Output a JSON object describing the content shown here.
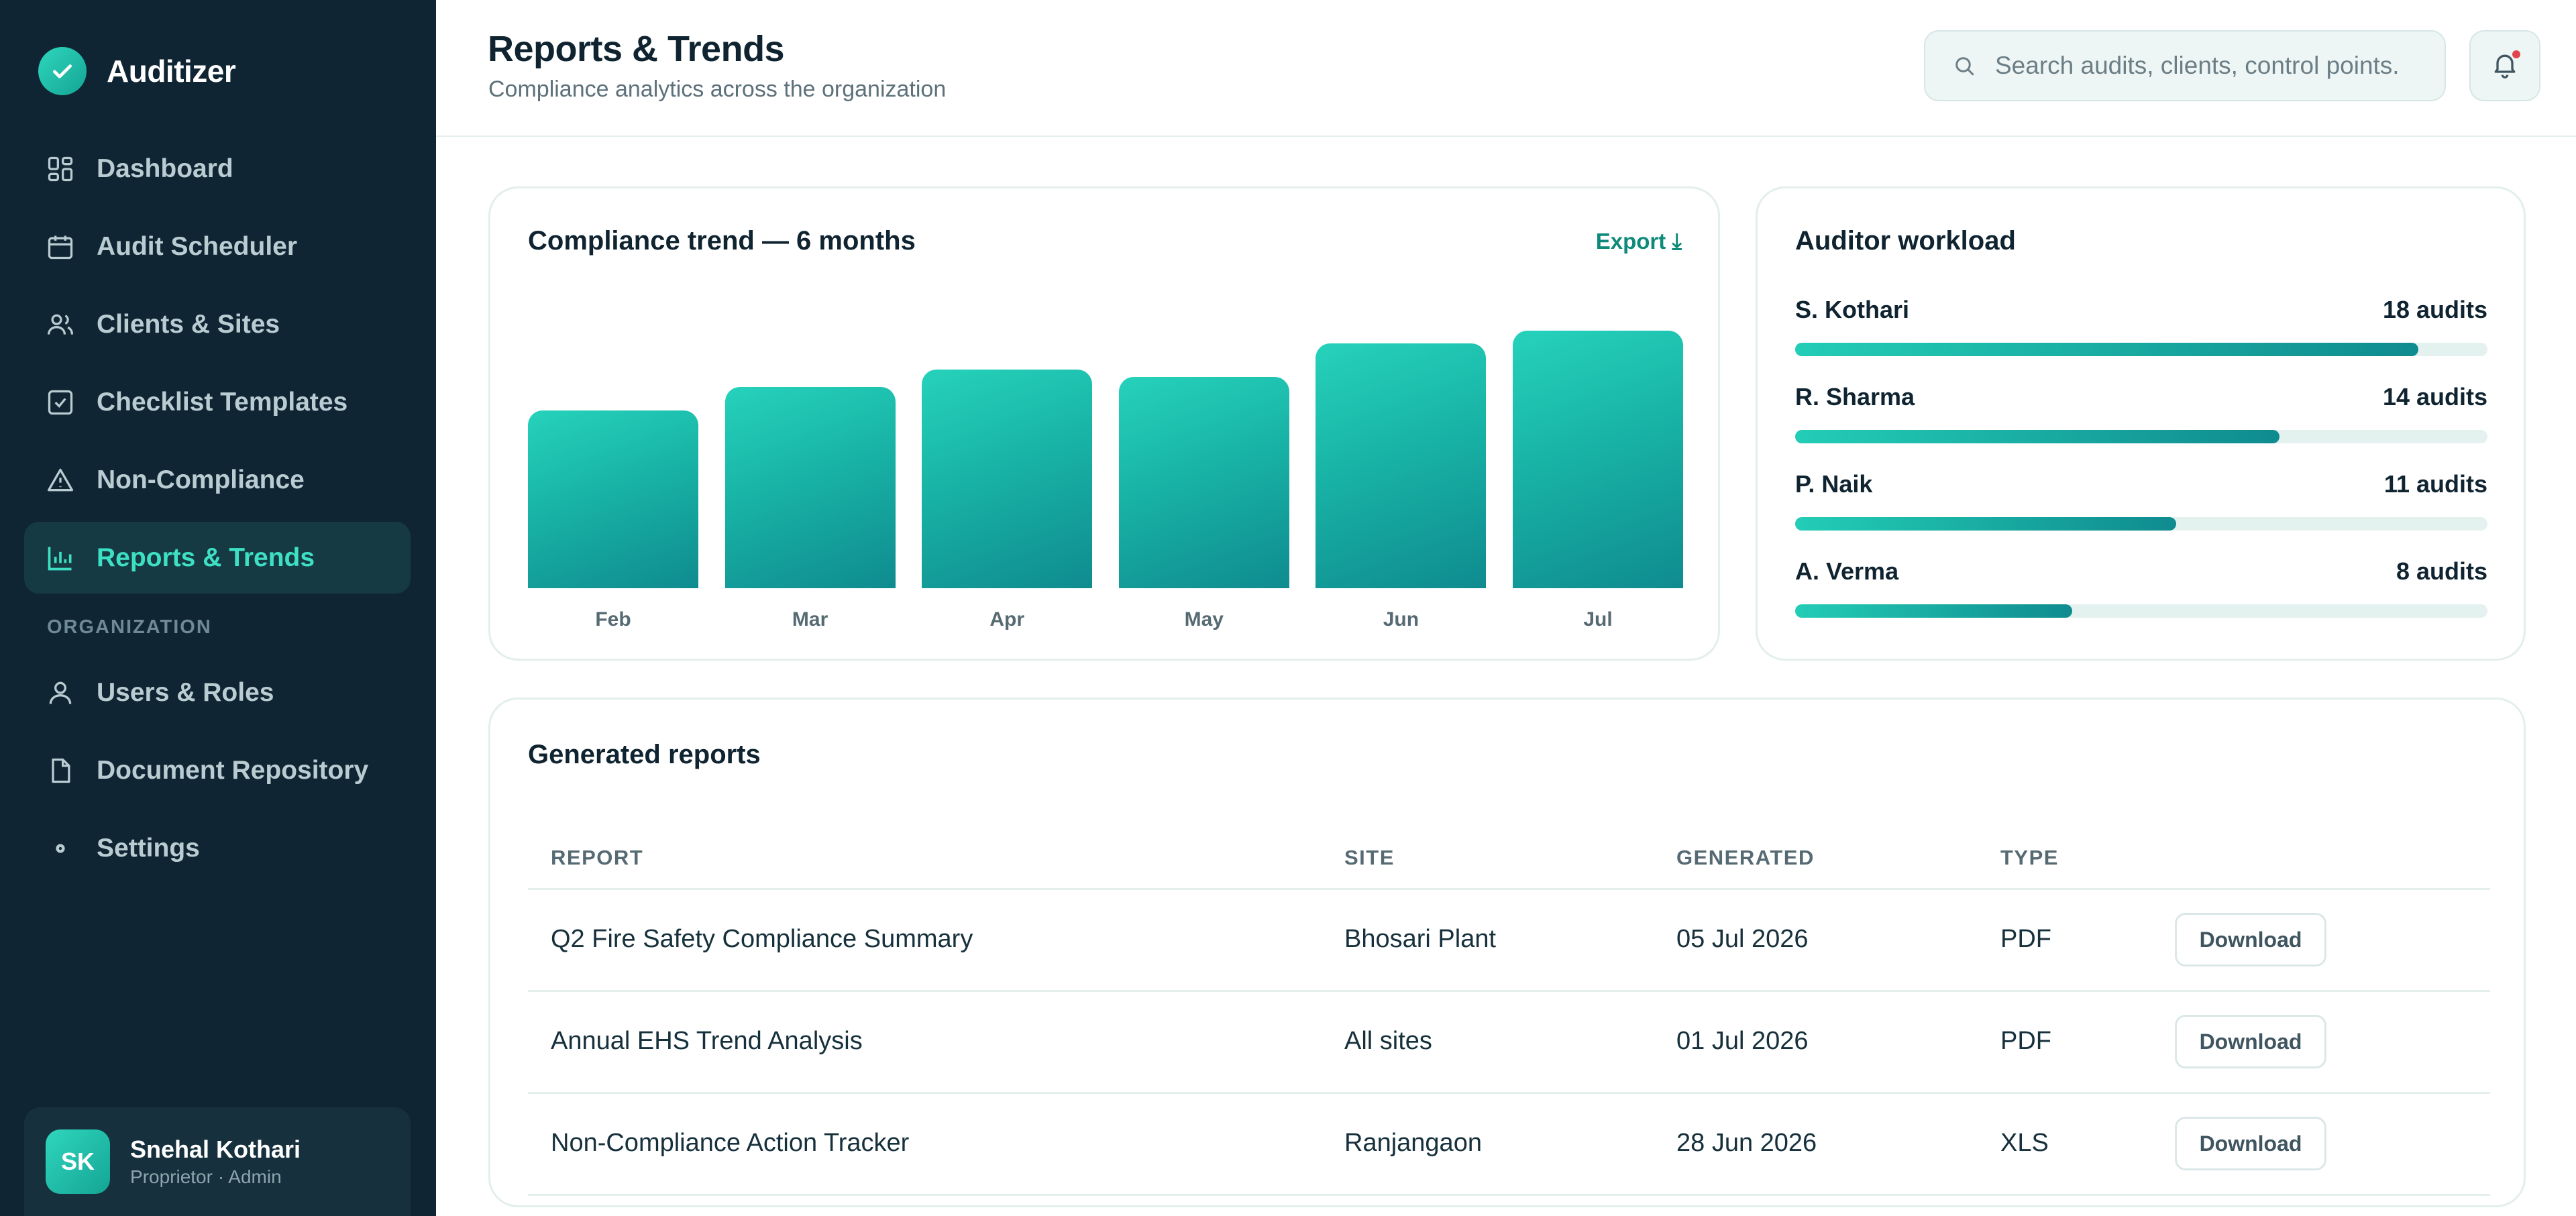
{
  "app": {
    "name": "Auditizer"
  },
  "sidebar": {
    "items": [
      {
        "label": "Dashboard",
        "icon": "dashboard-icon"
      },
      {
        "label": "Audit Scheduler",
        "icon": "calendar-icon"
      },
      {
        "label": "Clients & Sites",
        "icon": "users-icon"
      },
      {
        "label": "Checklist Templates",
        "icon": "checklist-icon"
      },
      {
        "label": "Non-Compliance",
        "icon": "warning-icon"
      },
      {
        "label": "Reports & Trends",
        "icon": "bar-chart-icon",
        "active": true
      }
    ],
    "section_label": "ORGANIZATION",
    "org_items": [
      {
        "label": "Users & Roles",
        "icon": "user-icon"
      },
      {
        "label": "Document Repository",
        "icon": "document-icon"
      },
      {
        "label": "Settings",
        "icon": "settings-icon"
      }
    ],
    "user": {
      "initials": "SK",
      "name": "Snehal Kothari",
      "role": "Proprietor · Admin"
    }
  },
  "header": {
    "title": "Reports & Trends",
    "subtitle": "Compliance analytics across the organization",
    "search_placeholder": "Search audits, clients, control points."
  },
  "trend": {
    "title": "Compliance trend — 6 months",
    "export_label": "Export ⤓"
  },
  "chart_data": {
    "type": "bar",
    "title": "Compliance trend — 6 months",
    "categories": [
      "Feb",
      "Mar",
      "Apr",
      "May",
      "Jun",
      "Jul"
    ],
    "values": [
      69,
      78,
      85,
      82,
      95,
      100
    ],
    "ylim": [
      0,
      100
    ],
    "grid": false,
    "xlabel": "",
    "ylabel": ""
  },
  "workload": {
    "title": "Auditor workload",
    "max": 20,
    "rows": [
      {
        "name": "S. Kothari",
        "count_label": "18 audits",
        "value": 18
      },
      {
        "name": "R. Sharma",
        "count_label": "14 audits",
        "value": 14
      },
      {
        "name": "P. Naik",
        "count_label": "11 audits",
        "value": 11
      },
      {
        "name": "A. Verma",
        "count_label": "8 audits",
        "value": 8
      }
    ]
  },
  "reports": {
    "title": "Generated reports",
    "columns": [
      "REPORT",
      "SITE",
      "GENERATED",
      "TYPE"
    ],
    "download_label": "Download",
    "rows": [
      {
        "report": "Q2 Fire Safety Compliance Summary",
        "site": "Bhosari Plant",
        "generated": "05 Jul 2026",
        "type": "PDF"
      },
      {
        "report": "Annual EHS Trend Analysis",
        "site": "All sites",
        "generated": "01 Jul 2026",
        "type": "PDF"
      },
      {
        "report": "Non-Compliance Action Tracker",
        "site": "Ranjangaon",
        "generated": "28 Jun 2026",
        "type": "XLS"
      }
    ]
  },
  "colors": {
    "sidebar_bg": "#102533",
    "accent": "#1fc4b0",
    "accent_dark": "#0f8b8f",
    "active_text": "#3ee0c5",
    "notification_dot": "#e0454c"
  }
}
